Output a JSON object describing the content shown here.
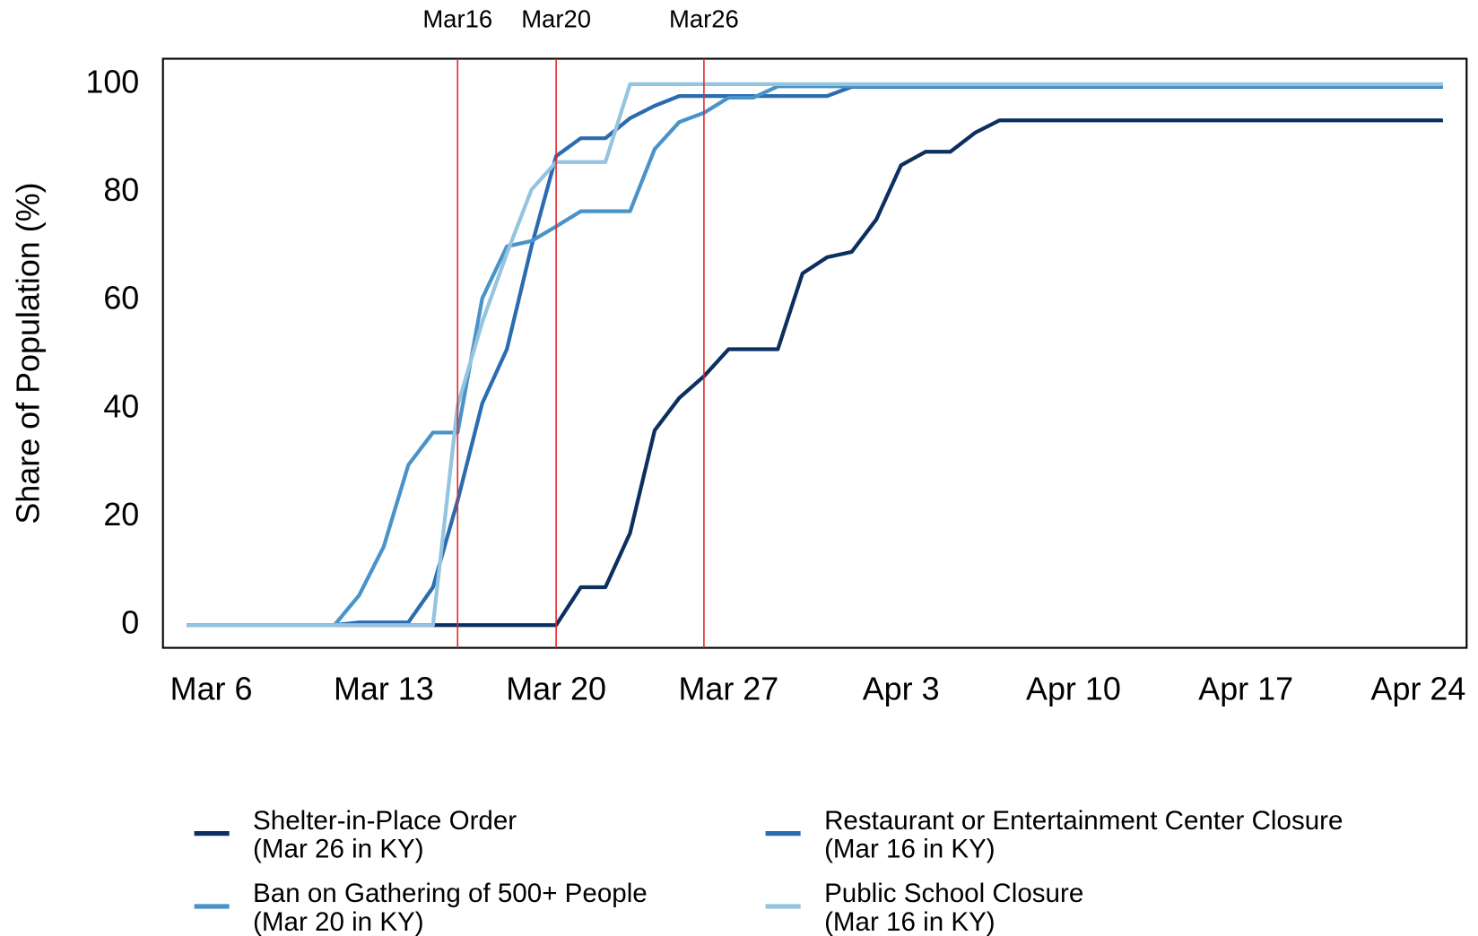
{
  "chart_data": {
    "type": "line",
    "y_label": "Share of Population (%)",
    "x": [
      "Mar 5",
      "Mar 6",
      "Mar 7",
      "Mar 8",
      "Mar 9",
      "Mar 10",
      "Mar 11",
      "Mar 12",
      "Mar 13",
      "Mar 14",
      "Mar 15",
      "Mar 16",
      "Mar 17",
      "Mar 18",
      "Mar 19",
      "Mar 20",
      "Mar 21",
      "Mar 22",
      "Mar 23",
      "Mar 24",
      "Mar 25",
      "Mar 26",
      "Mar 27",
      "Mar 28",
      "Mar 29",
      "Mar 30",
      "Mar 31",
      "Apr 1",
      "Apr 2",
      "Apr 3",
      "Apr 4",
      "Apr 5",
      "Apr 6",
      "Apr 7",
      "Apr 8",
      "Apr 9",
      "Apr 10",
      "Apr 11",
      "Apr 12",
      "Apr 13",
      "Apr 14",
      "Apr 15",
      "Apr 16",
      "Apr 17",
      "Apr 18",
      "Apr 19",
      "Apr 20",
      "Apr 21",
      "Apr 22",
      "Apr 23",
      "Apr 24",
      "Apr 25"
    ],
    "xticks": [
      "Mar 6",
      "Mar 13",
      "Mar 20",
      "Mar 27",
      "Apr 3",
      "Apr 10",
      "Apr 17",
      "Apr 24"
    ],
    "ylim": [
      -4.2,
      104.7
    ],
    "yticks": [
      0,
      20,
      40,
      60,
      80,
      100
    ],
    "vlines": [
      {
        "x": "Mar 16",
        "label": "Mar16",
        "color": "#e3262b"
      },
      {
        "x": "Mar 20",
        "label": "Mar20",
        "color": "#e3262b"
      },
      {
        "x": "Mar 26",
        "label": "Mar26",
        "color": "#e3262b"
      }
    ],
    "series": [
      {
        "name": "Shelter-in-Place Order",
        "note": "(Mar 26 in KY)",
        "color": "#0b2f5f",
        "values": [
          0,
          0,
          0,
          0,
          0,
          0,
          0,
          0,
          0,
          0,
          0,
          0,
          0,
          0,
          0,
          0,
          7,
          7,
          17,
          36,
          42,
          46,
          51,
          51,
          51,
          65,
          68,
          69,
          75,
          85,
          87.5,
          87.5,
          91,
          93.3,
          93.3,
          93.3,
          93.3,
          93.3,
          93.3,
          93.3,
          93.3,
          93.3,
          93.3,
          93.3,
          93.3,
          93.3,
          93.3,
          93.3,
          93.3,
          93.3,
          93.3,
          93.3
        ]
      },
      {
        "name": "Restaurant or Entertainment Center Closure",
        "note": "(Mar 16 in KY)",
        "color": "#2b6cb0",
        "values": [
          0,
          0,
          0,
          0,
          0,
          0,
          0,
          0.5,
          0.5,
          0.5,
          7,
          23,
          41,
          51,
          70,
          86.7,
          90,
          90,
          93.7,
          96,
          97.8,
          97.8,
          97.8,
          97.8,
          97.8,
          97.8,
          97.8,
          99.5,
          99.5,
          99.5,
          99.5,
          99.5,
          99.5,
          99.5,
          99.5,
          99.5,
          99.5,
          99.5,
          99.5,
          99.5,
          99.5,
          99.5,
          99.5,
          99.5,
          99.5,
          99.5,
          99.5,
          99.5,
          99.5,
          99.5,
          99.5,
          99.5
        ]
      },
      {
        "name": "Ban on Gathering of 500+ People",
        "note": "(Mar 20 in KY)",
        "color": "#4a93c8",
        "values": [
          0,
          0,
          0,
          0,
          0,
          0,
          0,
          5.5,
          14.5,
          29.6,
          35.6,
          35.6,
          60.4,
          70,
          71,
          73.7,
          76.5,
          76.5,
          76.5,
          88,
          93,
          94.7,
          97.5,
          97.5,
          99.6,
          99.6,
          99.6,
          99.6,
          99.6,
          99.6,
          99.6,
          99.6,
          99.6,
          99.6,
          99.6,
          99.6,
          99.6,
          99.6,
          99.6,
          99.6,
          99.6,
          99.6,
          99.6,
          99.6,
          99.6,
          99.6,
          99.6,
          99.6,
          99.6,
          99.6,
          99.6,
          99.6
        ]
      },
      {
        "name": "Public School Closure",
        "note": "(Mar 16 in KY)",
        "color": "#94c4df",
        "values": [
          0,
          0,
          0,
          0,
          0,
          0,
          0,
          0,
          0,
          0,
          0,
          40.6,
          56,
          68.7,
          80.5,
          85.6,
          85.6,
          85.6,
          100,
          100,
          100,
          100,
          100,
          100,
          100,
          100,
          100,
          100,
          100,
          100,
          100,
          100,
          100,
          100,
          100,
          100,
          100,
          100,
          100,
          100,
          100,
          100,
          100,
          100,
          100,
          100,
          100,
          100,
          100,
          100,
          100,
          100
        ]
      }
    ]
  }
}
